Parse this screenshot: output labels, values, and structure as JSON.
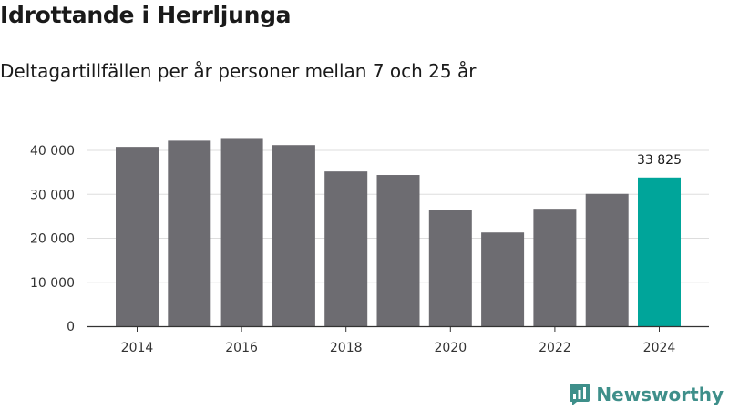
{
  "header": {
    "title": "Idrottande i Herrljunga",
    "subtitle": "Deltagartillfällen per år personer mellan 7 och 25 år"
  },
  "brand": {
    "name": "Newsworthy",
    "icon": "newsworthy-logo-icon",
    "color": "#3e8f8a"
  },
  "colors": {
    "bar": "#6d6c71",
    "highlight": "#00a59a",
    "grid": "#dddddd",
    "axis": "#333333"
  },
  "chart_data": {
    "type": "bar",
    "title": "Idrottande i Herrljunga",
    "subtitle": "Deltagartillfällen per år personer mellan 7 och 25 år",
    "categories": [
      "2014",
      "2015",
      "2016",
      "2017",
      "2018",
      "2019",
      "2020",
      "2021",
      "2022",
      "2023",
      "2024"
    ],
    "values": [
      40800,
      42200,
      42600,
      41200,
      35200,
      34400,
      26500,
      21300,
      26700,
      30100,
      33825
    ],
    "highlight_index": 10,
    "data_labels": [
      {
        "index": 10,
        "text": "33 825"
      }
    ],
    "xlabel": "",
    "ylabel": "",
    "ylim": [
      0,
      40000
    ],
    "yticks": [
      0,
      10000,
      20000,
      30000,
      40000
    ],
    "ytick_labels": [
      "0",
      "10 000",
      "20 000",
      "30 000",
      "40 000"
    ],
    "xtick_labels": [
      "2014",
      "2016",
      "2018",
      "2020",
      "2022",
      "2024"
    ],
    "grid": true,
    "legend": "none"
  }
}
